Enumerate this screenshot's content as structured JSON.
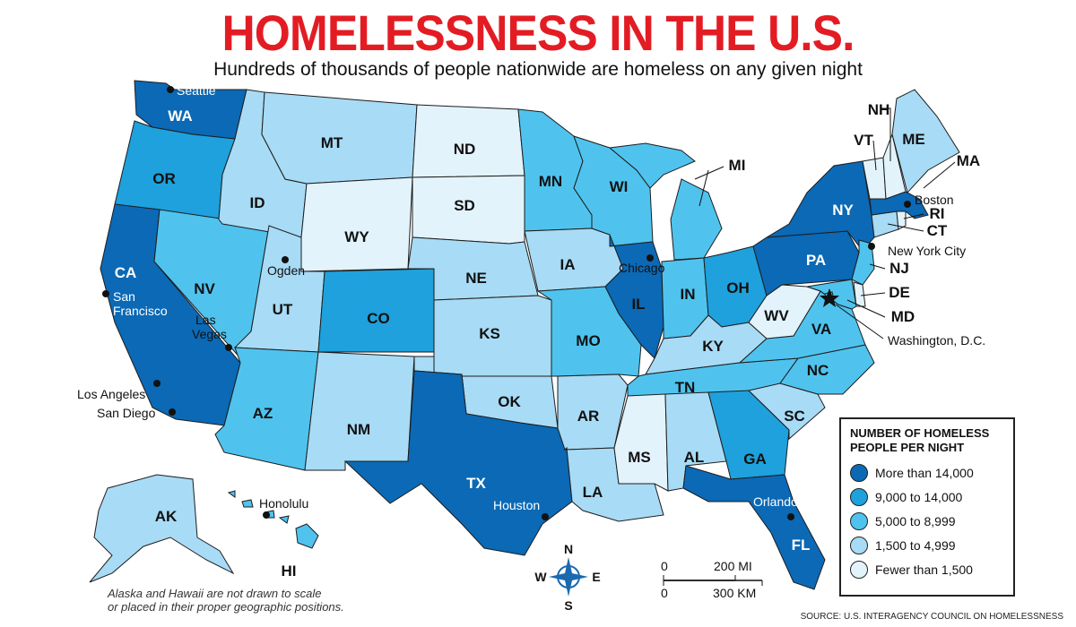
{
  "header": {
    "title": "HOMELESSNESS IN THE U.S.",
    "subtitle": "Hundreds of thousands of people nationwide are homeless on any given night"
  },
  "legend": {
    "title_line1": "NUMBER OF HOMELESS",
    "title_line2": "PEOPLE PER NIGHT",
    "categories": [
      {
        "label": "More than 14,000",
        "color": "#0b69b5"
      },
      {
        "label": "9,000 to 14,000",
        "color": "#1ea1dc"
      },
      {
        "label": "5,000 to 8,999",
        "color": "#4fc3ee"
      },
      {
        "label": "1,500 to 4,999",
        "color": "#a8dbf5"
      },
      {
        "label": "Fewer than 1,500",
        "color": "#e3f3fc"
      }
    ]
  },
  "states": {
    "WA": {
      "label": "WA",
      "category": 0
    },
    "OR": {
      "label": "OR",
      "category": 1
    },
    "CA": {
      "label": "CA",
      "category": 0
    },
    "NV": {
      "label": "NV",
      "category": 2
    },
    "ID": {
      "label": "ID",
      "category": 3
    },
    "MT": {
      "label": "MT",
      "category": 3
    },
    "WY": {
      "label": "WY",
      "category": 4
    },
    "UT": {
      "label": "UT",
      "category": 3
    },
    "AZ": {
      "label": "AZ",
      "category": 2
    },
    "CO": {
      "label": "CO",
      "category": 1
    },
    "NM": {
      "label": "NM",
      "category": 3
    },
    "ND": {
      "label": "ND",
      "category": 4
    },
    "SD": {
      "label": "SD",
      "category": 4
    },
    "NE": {
      "label": "NE",
      "category": 3
    },
    "KS": {
      "label": "KS",
      "category": 3
    },
    "OK": {
      "label": "OK",
      "category": 3
    },
    "TX": {
      "label": "TX",
      "category": 0
    },
    "MN": {
      "label": "MN",
      "category": 2
    },
    "IA": {
      "label": "IA",
      "category": 3
    },
    "MO": {
      "label": "MO",
      "category": 2
    },
    "AR": {
      "label": "AR",
      "category": 3
    },
    "LA": {
      "label": "LA",
      "category": 3
    },
    "WI": {
      "label": "WI",
      "category": 2
    },
    "IL": {
      "label": "IL",
      "category": 0
    },
    "MI": {
      "label": "MI",
      "category": 2
    },
    "IN": {
      "label": "IN",
      "category": 2
    },
    "OH": {
      "label": "OH",
      "category": 1
    },
    "KY": {
      "label": "KY",
      "category": 3
    },
    "TN": {
      "label": "TN",
      "category": 2
    },
    "MS": {
      "label": "MS",
      "category": 4
    },
    "AL": {
      "label": "AL",
      "category": 3
    },
    "GA": {
      "label": "GA",
      "category": 1
    },
    "FL": {
      "label": "FL",
      "category": 0
    },
    "SC": {
      "label": "SC",
      "category": 3
    },
    "NC": {
      "label": "NC",
      "category": 2
    },
    "VA": {
      "label": "VA",
      "category": 2
    },
    "WV": {
      "label": "WV",
      "category": 4
    },
    "PA": {
      "label": "PA",
      "category": 0
    },
    "NY": {
      "label": "NY",
      "category": 0
    },
    "NJ": {
      "label": "NJ",
      "category": 2
    },
    "DE": {
      "label": "DE",
      "category": 4
    },
    "MD": {
      "label": "MD",
      "category": 2
    },
    "CT": {
      "label": "CT",
      "category": 3
    },
    "RI": {
      "label": "RI",
      "category": 4
    },
    "MA": {
      "label": "MA",
      "category": 0
    },
    "VT": {
      "label": "VT",
      "category": 4
    },
    "NH": {
      "label": "NH",
      "category": 4
    },
    "ME": {
      "label": "ME",
      "category": 3
    },
    "AK": {
      "label": "AK",
      "category": 3
    },
    "HI": {
      "label": "HI",
      "category": 2
    },
    "DC": {
      "category": 2
    }
  },
  "cities": {
    "seattle": "Seattle",
    "san_francisco_1": "San",
    "san_francisco_2": "Francisco",
    "las_vegas_1": "Las",
    "las_vegas_2": "Vegas",
    "los_angeles": "Los Angeles",
    "san_diego": "San Diego",
    "ogden": "Ogden",
    "honolulu": "Honolulu",
    "chicago": "Chicago",
    "houston": "Houston",
    "orlando": "Orlando",
    "boston": "Boston",
    "new_york": "New York City",
    "washington": "Washington, D.C."
  },
  "compass": {
    "n": "N",
    "s": "S",
    "e": "E",
    "w": "W"
  },
  "scale": {
    "zero_top": "0",
    "mi": "200 MI",
    "zero_bottom": "0",
    "km": "300 KM"
  },
  "note": {
    "line1": "Alaska and Hawaii are not drawn to scale",
    "line2": "or placed in their proper geographic positions."
  },
  "source": "SOURCE: U.S. INTERAGENCY COUNCIL ON HOMELESSNESS"
}
